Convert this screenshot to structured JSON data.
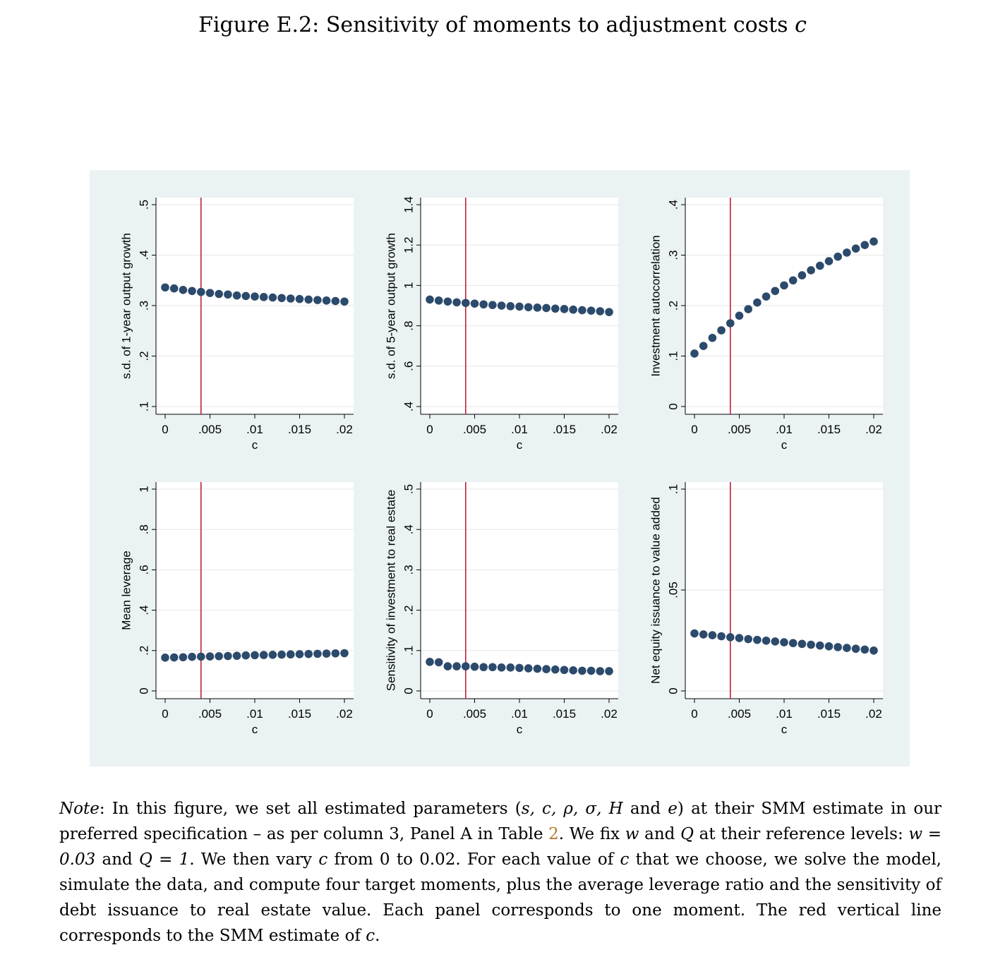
{
  "figure": {
    "title_prefix": "Figure E.2: Sensitivity of moments to adjustment costs ",
    "title_symbol": "c"
  },
  "note": {
    "label": "Note",
    "p1": ": In this figure, we set all estimated parameters (",
    "params": "s, c, ρ, σ, H",
    "p2": " and ",
    "param_e": "e",
    "p3": ") at their SMM estimate in our preferred specification – as per column 3, Panel A in Table ",
    "table_ref": "2",
    "p4": ". We fix ",
    "w": "w",
    "p5": " and ",
    "Q": "Q",
    "p6": " at their reference levels: ",
    "w_eq": "w = 0.03",
    "p7": " and ",
    "Q_eq": "Q = 1",
    "p8": ". We then vary ",
    "c1": "c",
    "p9": " from 0 to 0.02. For each value of ",
    "c2": "c",
    "p10": " that we choose, we solve the model, simulate the data, and compute four target moments, plus the average leverage ratio and the sensitivity of debt issuance to real estate value. Each panel corresponds to one moment. The red vertical line corresponds to the SMM estimate of ",
    "c3": "c",
    "p11": "."
  },
  "colors": {
    "marker": "#2c4a6b",
    "vline": "#c0213a",
    "panel_bg": "#ffffff",
    "figure_bg": "#eaf2f3",
    "grid": "#e6e6e6"
  },
  "chart_data": [
    {
      "type": "scatter",
      "xlabel": "c",
      "ylabel": "s.d. of 1-year output growth",
      "xlim": [
        0,
        0.02
      ],
      "ylim": [
        0.1,
        0.5
      ],
      "xticks": [
        0,
        0.005,
        0.01,
        0.015,
        0.02
      ],
      "xtick_labels": [
        "0",
        ".005",
        ".01",
        ".015",
        ".02"
      ],
      "yticks": [
        0.1,
        0.2,
        0.3,
        0.4,
        0.5
      ],
      "ytick_labels": [
        ".1",
        ".2",
        ".3",
        ".4",
        ".5"
      ],
      "vline": 0.004,
      "grid": true,
      "x": [
        0,
        0.001,
        0.002,
        0.003,
        0.004,
        0.005,
        0.006,
        0.007,
        0.008,
        0.009,
        0.01,
        0.011,
        0.012,
        0.013,
        0.014,
        0.015,
        0.016,
        0.017,
        0.018,
        0.019,
        0.02
      ],
      "y": [
        0.336,
        0.334,
        0.331,
        0.329,
        0.327,
        0.325,
        0.323,
        0.322,
        0.32,
        0.319,
        0.318,
        0.317,
        0.316,
        0.315,
        0.314,
        0.313,
        0.312,
        0.311,
        0.31,
        0.309,
        0.308
      ]
    },
    {
      "type": "scatter",
      "xlabel": "c",
      "ylabel": "s.d. of 5-year output growth",
      "xlim": [
        0,
        0.02
      ],
      "ylim": [
        0.4,
        1.4
      ],
      "xticks": [
        0,
        0.005,
        0.01,
        0.015,
        0.02
      ],
      "xtick_labels": [
        "0",
        ".005",
        ".01",
        ".015",
        ".02"
      ],
      "yticks": [
        0.4,
        0.6,
        0.8,
        1.0,
        1.2,
        1.4
      ],
      "ytick_labels": [
        ".4",
        ".6",
        ".8",
        "1",
        "1.2",
        "1.4"
      ],
      "vline": 0.004,
      "grid": true,
      "x": [
        0,
        0.001,
        0.002,
        0.003,
        0.004,
        0.005,
        0.006,
        0.007,
        0.008,
        0.009,
        0.01,
        0.011,
        0.012,
        0.013,
        0.014,
        0.015,
        0.016,
        0.017,
        0.018,
        0.019,
        0.02
      ],
      "y": [
        0.93,
        0.925,
        0.92,
        0.916,
        0.913,
        0.91,
        0.906,
        0.903,
        0.9,
        0.897,
        0.895,
        0.892,
        0.89,
        0.888,
        0.885,
        0.883,
        0.88,
        0.877,
        0.875,
        0.872,
        0.868
      ]
    },
    {
      "type": "scatter",
      "xlabel": "c",
      "ylabel": "Investment autocorrelation",
      "xlim": [
        0,
        0.02
      ],
      "ylim": [
        0,
        0.4
      ],
      "xticks": [
        0,
        0.005,
        0.01,
        0.015,
        0.02
      ],
      "xtick_labels": [
        "0",
        ".005",
        ".01",
        ".015",
        ".02"
      ],
      "yticks": [
        0,
        0.1,
        0.2,
        0.3,
        0.4
      ],
      "ytick_labels": [
        "0",
        ".1",
        ".2",
        ".3",
        ".4"
      ],
      "vline": 0.004,
      "grid": true,
      "x": [
        0,
        0.001,
        0.002,
        0.003,
        0.004,
        0.005,
        0.006,
        0.007,
        0.008,
        0.009,
        0.01,
        0.011,
        0.012,
        0.013,
        0.014,
        0.015,
        0.016,
        0.017,
        0.018,
        0.019,
        0.02
      ],
      "y": [
        0.105,
        0.12,
        0.136,
        0.151,
        0.165,
        0.18,
        0.193,
        0.206,
        0.218,
        0.229,
        0.24,
        0.25,
        0.26,
        0.27,
        0.279,
        0.288,
        0.297,
        0.305,
        0.313,
        0.32,
        0.327
      ]
    },
    {
      "type": "scatter",
      "xlabel": "c",
      "ylabel": "Mean leverage",
      "xlim": [
        0,
        0.02
      ],
      "ylim": [
        0,
        1
      ],
      "xticks": [
        0,
        0.005,
        0.01,
        0.015,
        0.02
      ],
      "xtick_labels": [
        "0",
        ".005",
        ".01",
        ".015",
        ".02"
      ],
      "yticks": [
        0,
        0.2,
        0.4,
        0.6,
        0.8,
        1.0
      ],
      "ytick_labels": [
        "0",
        ".2",
        ".4",
        ".6",
        ".8",
        "1"
      ],
      "vline": 0.004,
      "grid": true,
      "x": [
        0,
        0.001,
        0.002,
        0.003,
        0.004,
        0.005,
        0.006,
        0.007,
        0.008,
        0.009,
        0.01,
        0.011,
        0.012,
        0.013,
        0.014,
        0.015,
        0.016,
        0.017,
        0.018,
        0.019,
        0.02
      ],
      "y": [
        0.165,
        0.166,
        0.167,
        0.169,
        0.17,
        0.171,
        0.172,
        0.173,
        0.174,
        0.176,
        0.177,
        0.178,
        0.179,
        0.18,
        0.181,
        0.182,
        0.183,
        0.184,
        0.185,
        0.186,
        0.187
      ]
    },
    {
      "type": "scatter",
      "xlabel": "c",
      "ylabel": "Sensitivity of investment to real estate",
      "xlim": [
        0,
        0.02
      ],
      "ylim": [
        0,
        0.5
      ],
      "xticks": [
        0,
        0.005,
        0.01,
        0.015,
        0.02
      ],
      "xtick_labels": [
        "0",
        ".005",
        ".01",
        ".015",
        ".02"
      ],
      "yticks": [
        0,
        0.1,
        0.2,
        0.3,
        0.4,
        0.5
      ],
      "ytick_labels": [
        "0",
        ".1",
        ".2",
        ".3",
        ".4",
        ".5"
      ],
      "vline": 0.004,
      "grid": true,
      "x": [
        0,
        0.001,
        0.002,
        0.003,
        0.004,
        0.005,
        0.006,
        0.007,
        0.008,
        0.009,
        0.01,
        0.011,
        0.012,
        0.013,
        0.014,
        0.015,
        0.016,
        0.017,
        0.018,
        0.019,
        0.02
      ],
      "y": [
        0.072,
        0.071,
        0.061,
        0.061,
        0.061,
        0.06,
        0.059,
        0.059,
        0.058,
        0.058,
        0.057,
        0.056,
        0.055,
        0.054,
        0.053,
        0.052,
        0.051,
        0.05,
        0.05,
        0.049,
        0.049
      ]
    },
    {
      "type": "scatter",
      "xlabel": "c",
      "ylabel": "Net equity issuance to value added",
      "xlim": [
        0,
        0.02
      ],
      "ylim": [
        0,
        0.1
      ],
      "xticks": [
        0,
        0.005,
        0.01,
        0.015,
        0.02
      ],
      "xtick_labels": [
        "0",
        ".005",
        ".01",
        ".015",
        ".02"
      ],
      "yticks": [
        0,
        0.05,
        0.1
      ],
      "ytick_labels": [
        "0",
        ".05",
        ".1"
      ],
      "vline": 0.004,
      "grid": true,
      "x": [
        0,
        0.001,
        0.002,
        0.003,
        0.004,
        0.005,
        0.006,
        0.007,
        0.008,
        0.009,
        0.01,
        0.011,
        0.012,
        0.013,
        0.014,
        0.015,
        0.016,
        0.017,
        0.018,
        0.019,
        0.02
      ],
      "y": [
        0.0285,
        0.028,
        0.0276,
        0.0271,
        0.0266,
        0.0262,
        0.0257,
        0.0253,
        0.0249,
        0.0245,
        0.0241,
        0.0237,
        0.0233,
        0.0229,
        0.0225,
        0.0221,
        0.0217,
        0.0213,
        0.0209,
        0.0205,
        0.02
      ]
    }
  ]
}
